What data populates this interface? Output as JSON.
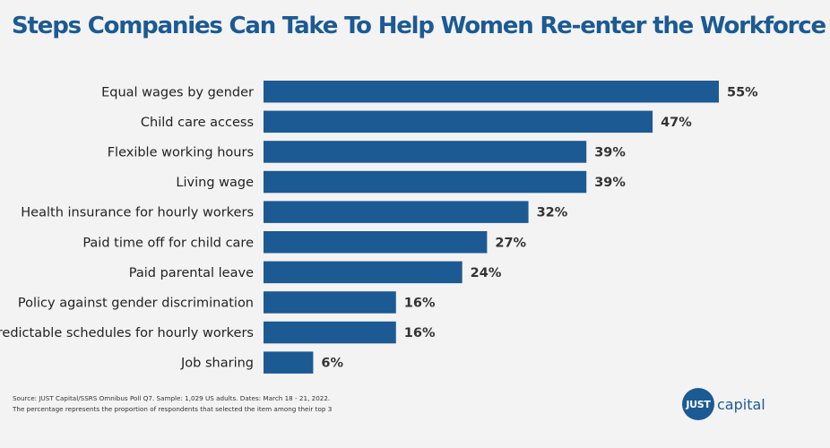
{
  "title": "Steps Companies Can Take To Help Women Re-enter the Workforce",
  "colors": {
    "bar": "#1c5a93",
    "title": "#1c5a93",
    "background": "#f3f3f3"
  },
  "chart_data": {
    "type": "bar",
    "orientation": "horizontal",
    "title": "Steps Companies Can Take To Help Women Re-enter the Workforce",
    "categories": [
      "Equal wages by gender",
      "Child care access",
      "Flexible working hours",
      "Living wage",
      "Health insurance for hourly workers",
      "Paid time off for child care",
      "Paid parental leave",
      "Policy against gender discrimination",
      "Predictable schedules for hourly workers",
      "Job sharing"
    ],
    "values": [
      55,
      47,
      39,
      39,
      32,
      27,
      24,
      16,
      16,
      6
    ],
    "value_labels": [
      "55%",
      "47%",
      "39%",
      "39%",
      "32%",
      "27%",
      "24%",
      "16%",
      "16%",
      "6%"
    ],
    "unit": "%",
    "xlim": [
      0,
      55
    ],
    "grid": false
  },
  "footnote": {
    "source": "Source: JUST Capital/SSRS Omnibus Poll Q7. Sample: 1,029 US adults. Dates: March 18 - 21, 2022.",
    "note": "The percentage represents the proportion of respondents that selected the item among their top 3"
  },
  "logo": {
    "mark": "JUST",
    "word": "capital"
  }
}
